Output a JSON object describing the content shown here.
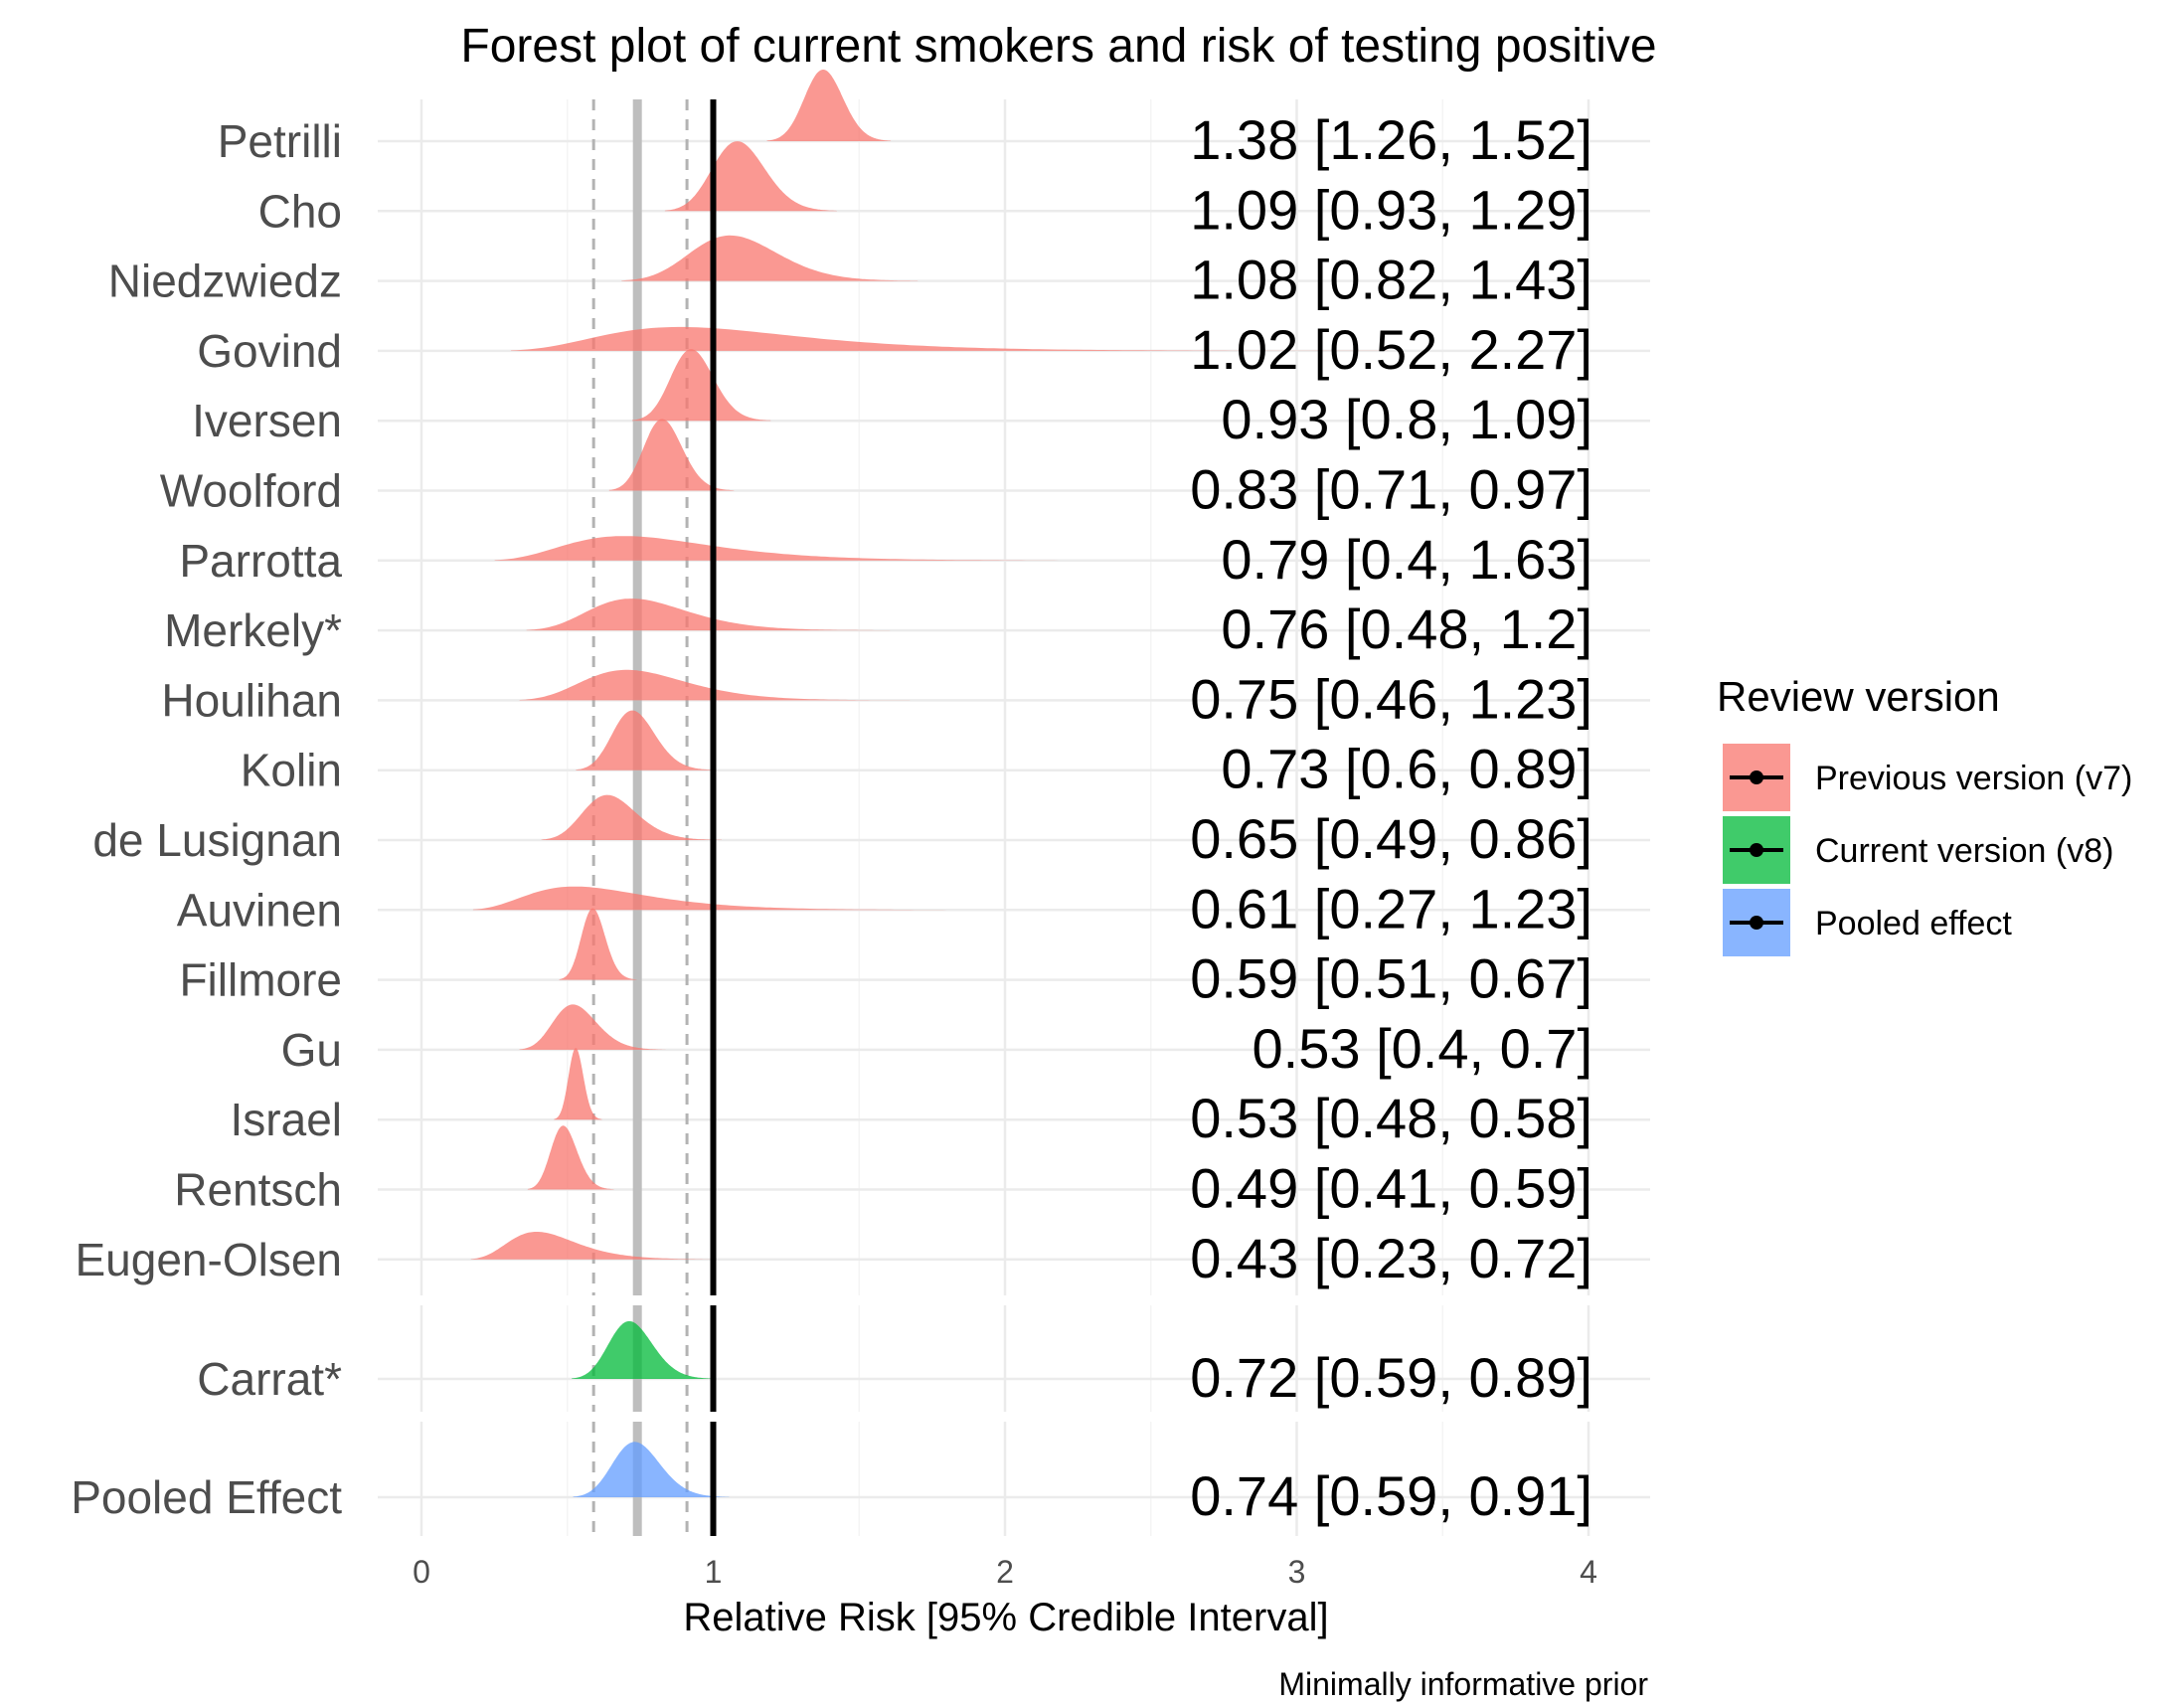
{
  "chart_data": {
    "type": "forest",
    "title": "Forest plot of current smokers and risk of testing positive",
    "xlabel": "Relative Risk [95% Credible Interval]",
    "caption": "Minimally informative prior",
    "xlim": [
      0,
      4
    ],
    "x_ticks": [
      "0",
      "1",
      "2",
      "3",
      "4"
    ],
    "reference_line": 1,
    "pooled_estimate": 0.74,
    "pooled_interval": [
      0.59,
      0.91
    ],
    "grid": true,
    "legend_position": "right",
    "legend": {
      "title": "Review version",
      "entries": [
        {
          "label": "Previous version (v7)",
          "color": "#F8766D"
        },
        {
          "label": "Current version (v8)",
          "color": "#00BA38"
        },
        {
          "label": "Pooled effect",
          "color": "#619CFF"
        }
      ]
    },
    "groups": [
      {
        "name": "Previous version (v7)",
        "color": "#F8766D",
        "studies": [
          {
            "label": "Petrilli",
            "estimate": 1.38,
            "lower": 1.26,
            "upper": 1.52,
            "text": "1.38 [1.26, 1.52]"
          },
          {
            "label": "Cho",
            "estimate": 1.09,
            "lower": 0.93,
            "upper": 1.29,
            "text": "1.09 [0.93, 1.29]"
          },
          {
            "label": "Niedzwiedz",
            "estimate": 1.08,
            "lower": 0.82,
            "upper": 1.43,
            "text": "1.08 [0.82, 1.43]"
          },
          {
            "label": "Govind",
            "estimate": 1.02,
            "lower": 0.52,
            "upper": 2.27,
            "text": "1.02 [0.52, 2.27]"
          },
          {
            "label": "Iversen",
            "estimate": 0.93,
            "lower": 0.8,
            "upper": 1.09,
            "text": "0.93 [0.8, 1.09]"
          },
          {
            "label": "Woolford",
            "estimate": 0.83,
            "lower": 0.71,
            "upper": 0.97,
            "text": "0.83 [0.71, 0.97]"
          },
          {
            "label": "Parrotta",
            "estimate": 0.79,
            "lower": 0.4,
            "upper": 1.63,
            "text": "0.79 [0.4, 1.63]"
          },
          {
            "label": "Merkely*",
            "estimate": 0.76,
            "lower": 0.48,
            "upper": 1.2,
            "text": "0.76 [0.48, 1.2]"
          },
          {
            "label": "Houlihan",
            "estimate": 0.75,
            "lower": 0.46,
            "upper": 1.23,
            "text": "0.75 [0.46, 1.23]"
          },
          {
            "label": "Kolin",
            "estimate": 0.73,
            "lower": 0.6,
            "upper": 0.89,
            "text": "0.73 [0.6, 0.89]"
          },
          {
            "label": "de Lusignan",
            "estimate": 0.65,
            "lower": 0.49,
            "upper": 0.86,
            "text": "0.65 [0.49, 0.86]"
          },
          {
            "label": "Auvinen",
            "estimate": 0.61,
            "lower": 0.27,
            "upper": 1.23,
            "text": "0.61 [0.27, 1.23]"
          },
          {
            "label": "Fillmore",
            "estimate": 0.59,
            "lower": 0.51,
            "upper": 0.67,
            "text": "0.59 [0.51, 0.67]"
          },
          {
            "label": "Gu",
            "estimate": 0.53,
            "lower": 0.4,
            "upper": 0.7,
            "text": "0.53 [0.4, 0.7]"
          },
          {
            "label": "Israel",
            "estimate": 0.53,
            "lower": 0.48,
            "upper": 0.58,
            "text": "0.53 [0.48, 0.58]"
          },
          {
            "label": "Rentsch",
            "estimate": 0.49,
            "lower": 0.41,
            "upper": 0.59,
            "text": "0.49 [0.41, 0.59]"
          },
          {
            "label": "Eugen-Olsen",
            "estimate": 0.43,
            "lower": 0.23,
            "upper": 0.72,
            "text": "0.43 [0.23, 0.72]"
          }
        ]
      },
      {
        "name": "Current version (v8)",
        "color": "#00BA38",
        "studies": [
          {
            "label": "Carrat*",
            "estimate": 0.72,
            "lower": 0.59,
            "upper": 0.89,
            "text": "0.72 [0.59, 0.89]"
          }
        ]
      },
      {
        "name": "Pooled effect",
        "color": "#619CFF",
        "studies": [
          {
            "label": "Pooled Effect",
            "estimate": 0.74,
            "lower": 0.59,
            "upper": 0.91,
            "text": "0.74 [0.59, 0.91]"
          }
        ]
      }
    ]
  }
}
